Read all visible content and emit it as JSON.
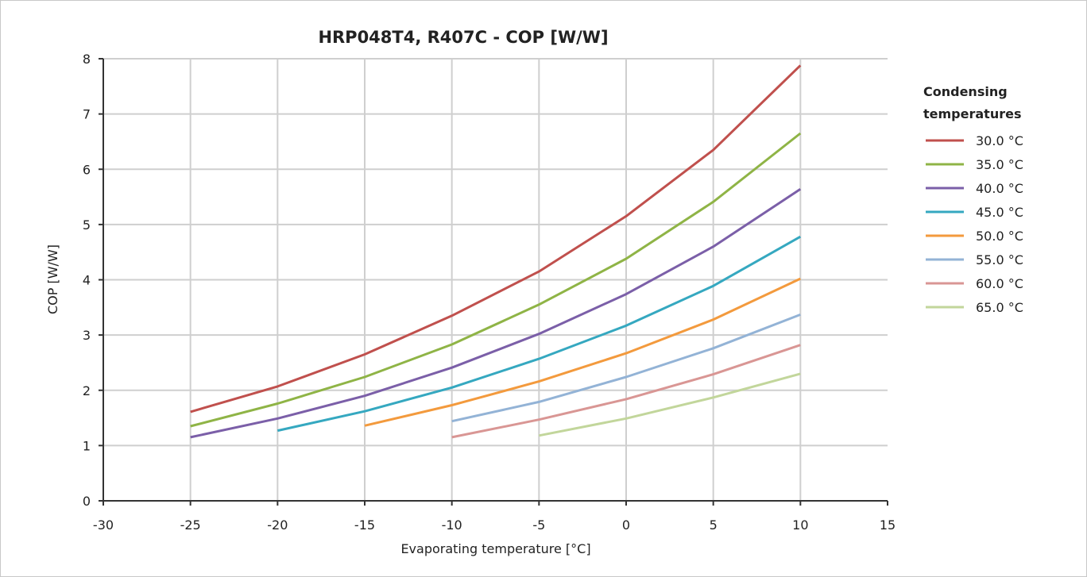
{
  "chart_data": {
    "type": "line",
    "title": "HRP048T4, R407C - COP [W/W]",
    "xlabel": "Evaporating temperature [°C]",
    "ylabel": "COP [W/W]",
    "xlim": [
      -30,
      15
    ],
    "ylim": [
      0,
      8
    ],
    "xticks": [
      "-30",
      "-25",
      "-20",
      "-15",
      "-10",
      "-5",
      "0",
      "5",
      "10",
      "15"
    ],
    "yticks": [
      "0",
      "1",
      "2",
      "3",
      "4",
      "5",
      "6",
      "7",
      "8"
    ],
    "grid": true,
    "legend_title": "Condensing temperatures",
    "legend_position": "right",
    "series": [
      {
        "name": "30.0 °C",
        "color": "#c0504d",
        "x": [
          -25,
          -20,
          -15,
          -10,
          -5,
          0,
          5,
          10
        ],
        "values": [
          1.61,
          2.07,
          2.65,
          3.35,
          4.15,
          5.15,
          6.35,
          7.88
        ]
      },
      {
        "name": "35.0 °C",
        "color": "#8fb446",
        "x": [
          -25,
          -20,
          -15,
          -10,
          -5,
          0,
          5,
          10
        ],
        "values": [
          1.35,
          1.76,
          2.24,
          2.83,
          3.55,
          4.38,
          5.41,
          6.65
        ]
      },
      {
        "name": "40.0 °C",
        "color": "#7b5fa8",
        "x": [
          -25,
          -20,
          -15,
          -10,
          -5,
          0,
          5,
          10
        ],
        "values": [
          1.15,
          1.49,
          1.9,
          2.41,
          3.02,
          3.74,
          4.6,
          5.64
        ]
      },
      {
        "name": "45.0 °C",
        "color": "#35a8c0",
        "x": [
          -20,
          -15,
          -10,
          -5,
          0,
          5,
          10
        ],
        "values": [
          1.27,
          1.62,
          2.05,
          2.57,
          3.17,
          3.89,
          4.78
        ]
      },
      {
        "name": "50.0 °C",
        "color": "#f39a3d",
        "x": [
          -15,
          -10,
          -5,
          0,
          5,
          10
        ],
        "values": [
          1.36,
          1.73,
          2.16,
          2.67,
          3.28,
          4.02
        ]
      },
      {
        "name": "55.0 °C",
        "color": "#93b3d6",
        "x": [
          -10,
          -5,
          0,
          5,
          10
        ],
        "values": [
          1.44,
          1.79,
          2.24,
          2.76,
          3.37
        ]
      },
      {
        "name": "60.0 °C",
        "color": "#d99694",
        "x": [
          -10,
          -5,
          0,
          5,
          10
        ],
        "values": [
          1.15,
          1.47,
          1.84,
          2.29,
          2.82
        ]
      },
      {
        "name": "65.0 °C",
        "color": "#c2d69b",
        "x": [
          -5,
          0,
          5,
          10
        ],
        "values": [
          1.18,
          1.49,
          1.87,
          2.3
        ]
      }
    ]
  }
}
